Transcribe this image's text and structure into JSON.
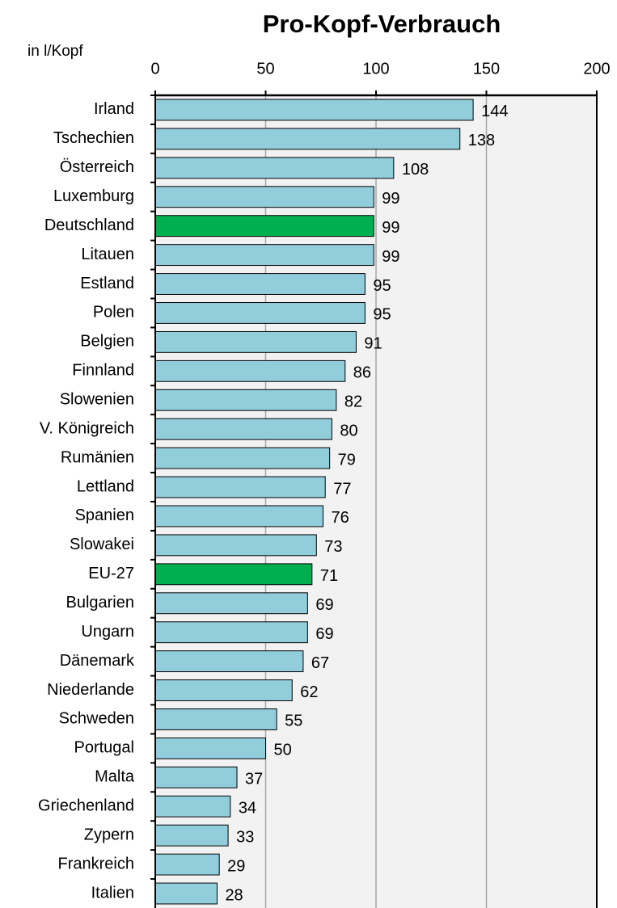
{
  "chart_data": {
    "type": "hbar",
    "title": "Pro-Kopf-Verbrauch",
    "axis_label": "in l/Kopf",
    "categories": [
      "Irland",
      "Tschechien",
      "Österreich",
      "Luxemburg",
      "Deutschland",
      "Litauen",
      "Estland",
      "Polen",
      "Belgien",
      "Finnland",
      "Slowenien",
      "V. Königreich",
      "Rumänien",
      "Lettland",
      "Spanien",
      "Slowakei",
      "EU-27",
      "Bulgarien",
      "Ungarn",
      "Dänemark",
      "Niederlande",
      "Schweden",
      "Portugal",
      "Malta",
      "Griechenland",
      "Zypern",
      "Frankreich",
      "Italien"
    ],
    "values": [
      144,
      138,
      108,
      99,
      99,
      99,
      95,
      95,
      91,
      86,
      82,
      80,
      79,
      77,
      76,
      73,
      71,
      69,
      69,
      67,
      62,
      55,
      50,
      37,
      34,
      33,
      29,
      28
    ],
    "colors": [
      "#92cddc",
      "#92cddc",
      "#92cddc",
      "#92cddc",
      "#00b050",
      "#92cddc",
      "#92cddc",
      "#92cddc",
      "#92cddc",
      "#92cddc",
      "#92cddc",
      "#92cddc",
      "#92cddc",
      "#92cddc",
      "#92cddc",
      "#92cddc",
      "#00b050",
      "#92cddc",
      "#92cddc",
      "#92cddc",
      "#92cddc",
      "#92cddc",
      "#92cddc",
      "#92cddc",
      "#92cddc",
      "#92cddc",
      "#92cddc",
      "#92cddc"
    ],
    "xlim": [
      0,
      200
    ],
    "xticks": [
      0,
      50,
      100,
      150,
      200
    ],
    "grid": true
  }
}
